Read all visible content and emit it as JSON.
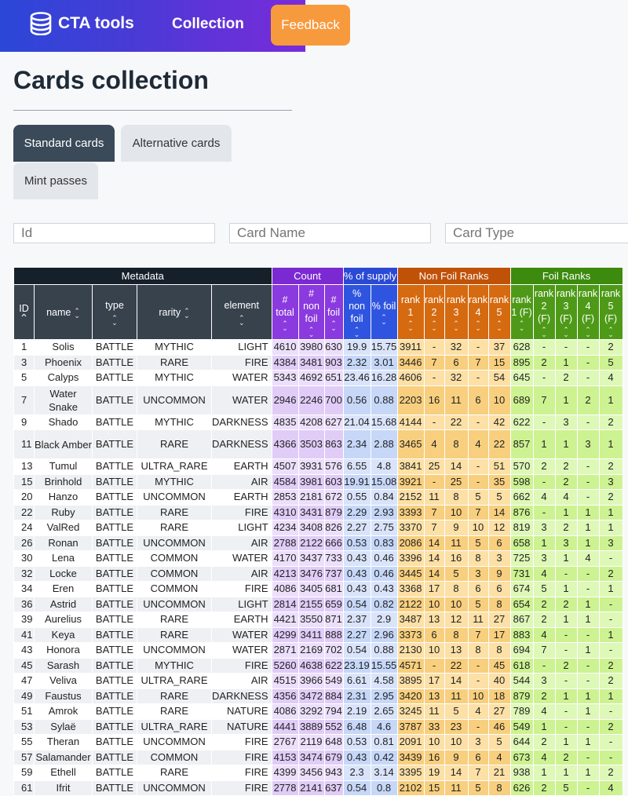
{
  "header": {
    "brand": "CTA tools",
    "nav_collection": "Collection",
    "feedback": "Feedback"
  },
  "page": {
    "title": "Cards collection",
    "tabs": [
      "Standard cards",
      "Alternative cards",
      "Mint passes"
    ]
  },
  "filters": {
    "id_placeholder": "Id",
    "name_placeholder": "Card Name",
    "type_placeholder": "Card Type"
  },
  "table": {
    "groups": [
      "Metadata",
      "Count",
      "% of supply",
      "Non Foil Ranks",
      "Foil Ranks"
    ],
    "columns": [
      [
        "ID"
      ],
      [
        "name"
      ],
      [
        "type"
      ],
      [
        "rarity"
      ],
      [
        "element"
      ],
      [
        "#",
        "total"
      ],
      [
        "#",
        "non",
        "foil"
      ],
      [
        "#",
        "foil"
      ],
      [
        "%",
        "non",
        "foil"
      ],
      [
        "% foil"
      ],
      [
        "rank",
        "1"
      ],
      [
        "rank",
        "2"
      ],
      [
        "rank",
        "3"
      ],
      [
        "rank",
        "4"
      ],
      [
        "rank",
        "5"
      ],
      [
        "rank",
        "1 (F)"
      ],
      [
        "rank",
        "2",
        "(F)"
      ],
      [
        "rank",
        "3",
        "(F)"
      ],
      [
        "rank",
        "4",
        "(F)"
      ],
      [
        "rank",
        "5",
        "(F)"
      ]
    ],
    "sort_icons": {
      "ID": "sort-asc-icon",
      "other": "sort-both-icon"
    },
    "rows": [
      [
        "1",
        "Solis",
        "BATTLE",
        "MYTHIC",
        "LIGHT",
        "4610",
        "3980",
        "630",
        "19.9",
        "15.75",
        "3911",
        "-",
        "32",
        "-",
        "37",
        "628",
        "-",
        "-",
        "-",
        "2"
      ],
      [
        "3",
        "Phoenix",
        "BATTLE",
        "RARE",
        "FIRE",
        "4384",
        "3481",
        "903",
        "2.32",
        "3.01",
        "3446",
        "7",
        "6",
        "7",
        "15",
        "895",
        "2",
        "1",
        "-",
        "5"
      ],
      [
        "5",
        "Calyps",
        "BATTLE",
        "MYTHIC",
        "WATER",
        "5343",
        "4692",
        "651",
        "23.46",
        "16.28",
        "4606",
        "-",
        "32",
        "-",
        "54",
        "645",
        "-",
        "2",
        "-",
        "4"
      ],
      [
        "7",
        "Water Snake",
        "BATTLE",
        "UNCOMMON",
        "WATER",
        "2946",
        "2246",
        "700",
        "0.56",
        "0.88",
        "2203",
        "16",
        "11",
        "6",
        "10",
        "689",
        "7",
        "1",
        "2",
        "1"
      ],
      [
        "9",
        "Shado",
        "BATTLE",
        "MYTHIC",
        "DARKNESS",
        "4835",
        "4208",
        "627",
        "21.04",
        "15.68",
        "4144",
        "-",
        "22",
        "-",
        "42",
        "622",
        "-",
        "3",
        "-",
        "2"
      ],
      [
        "11",
        "Black Amber",
        "BATTLE",
        "RARE",
        "DARKNESS",
        "4366",
        "3503",
        "863",
        "2.34",
        "2.88",
        "3465",
        "4",
        "8",
        "4",
        "22",
        "857",
        "1",
        "1",
        "3",
        "1"
      ],
      [
        "13",
        "Tumul",
        "BATTLE",
        "ULTRA_RARE",
        "EARTH",
        "4507",
        "3931",
        "576",
        "6.55",
        "4.8",
        "3841",
        "25",
        "14",
        "-",
        "51",
        "570",
        "2",
        "2",
        "-",
        "2"
      ],
      [
        "15",
        "Brinhold",
        "BATTLE",
        "MYTHIC",
        "AIR",
        "4584",
        "3981",
        "603",
        "19.91",
        "15.08",
        "3921",
        "-",
        "25",
        "-",
        "35",
        "598",
        "-",
        "2",
        "-",
        "3"
      ],
      [
        "20",
        "Hanzo",
        "BATTLE",
        "UNCOMMON",
        "EARTH",
        "2853",
        "2181",
        "672",
        "0.55",
        "0.84",
        "2152",
        "11",
        "8",
        "5",
        "5",
        "662",
        "4",
        "4",
        "-",
        "2"
      ],
      [
        "22",
        "Ruby",
        "BATTLE",
        "RARE",
        "FIRE",
        "4310",
        "3431",
        "879",
        "2.29",
        "2.93",
        "3393",
        "7",
        "10",
        "7",
        "14",
        "876",
        "-",
        "1",
        "1",
        "1"
      ],
      [
        "24",
        "ValRed",
        "BATTLE",
        "RARE",
        "LIGHT",
        "4234",
        "3408",
        "826",
        "2.27",
        "2.75",
        "3370",
        "7",
        "9",
        "10",
        "12",
        "819",
        "3",
        "2",
        "1",
        "1"
      ],
      [
        "26",
        "Ronan",
        "BATTLE",
        "UNCOMMON",
        "AIR",
        "2788",
        "2122",
        "666",
        "0.53",
        "0.83",
        "2086",
        "14",
        "11",
        "5",
        "6",
        "658",
        "1",
        "3",
        "1",
        "3"
      ],
      [
        "30",
        "Lena",
        "BATTLE",
        "COMMON",
        "WATER",
        "4170",
        "3437",
        "733",
        "0.43",
        "0.46",
        "3396",
        "14",
        "16",
        "8",
        "3",
        "725",
        "3",
        "1",
        "4",
        "-"
      ],
      [
        "32",
        "Locke",
        "BATTLE",
        "COMMON",
        "AIR",
        "4213",
        "3476",
        "737",
        "0.43",
        "0.46",
        "3445",
        "14",
        "5",
        "3",
        "9",
        "731",
        "4",
        "-",
        "-",
        "2"
      ],
      [
        "34",
        "Eren",
        "BATTLE",
        "COMMON",
        "FIRE",
        "4086",
        "3405",
        "681",
        "0.43",
        "0.43",
        "3368",
        "17",
        "8",
        "6",
        "6",
        "674",
        "5",
        "1",
        "-",
        "1"
      ],
      [
        "36",
        "Astrid",
        "BATTLE",
        "UNCOMMON",
        "LIGHT",
        "2814",
        "2155",
        "659",
        "0.54",
        "0.82",
        "2122",
        "10",
        "10",
        "5",
        "8",
        "654",
        "2",
        "2",
        "1",
        "-"
      ],
      [
        "39",
        "Aurelius",
        "BATTLE",
        "RARE",
        "EARTH",
        "4421",
        "3550",
        "871",
        "2.37",
        "2.9",
        "3487",
        "13",
        "12",
        "11",
        "27",
        "867",
        "2",
        "1",
        "1",
        "-"
      ],
      [
        "41",
        "Keya",
        "BATTLE",
        "RARE",
        "WATER",
        "4299",
        "3411",
        "888",
        "2.27",
        "2.96",
        "3373",
        "6",
        "8",
        "7",
        "17",
        "883",
        "4",
        "-",
        "-",
        "1"
      ],
      [
        "43",
        "Honora",
        "BATTLE",
        "UNCOMMON",
        "WATER",
        "2871",
        "2169",
        "702",
        "0.54",
        "0.88",
        "2130",
        "10",
        "13",
        "8",
        "8",
        "694",
        "7",
        "-",
        "1",
        "-"
      ],
      [
        "45",
        "Sarash",
        "BATTLE",
        "MYTHIC",
        "FIRE",
        "5260",
        "4638",
        "622",
        "23.19",
        "15.55",
        "4571",
        "-",
        "22",
        "-",
        "45",
        "618",
        "-",
        "2",
        "-",
        "2"
      ],
      [
        "47",
        "Veliva",
        "BATTLE",
        "ULTRA_RARE",
        "AIR",
        "4515",
        "3966",
        "549",
        "6.61",
        "4.58",
        "3895",
        "17",
        "14",
        "-",
        "40",
        "544",
        "3",
        "-",
        "-",
        "2"
      ],
      [
        "49",
        "Faustus",
        "BATTLE",
        "RARE",
        "DARKNESS",
        "4356",
        "3472",
        "884",
        "2.31",
        "2.95",
        "3420",
        "13",
        "11",
        "10",
        "18",
        "879",
        "2",
        "1",
        "1",
        "1"
      ],
      [
        "51",
        "Amrok",
        "BATTLE",
        "RARE",
        "NATURE",
        "4086",
        "3292",
        "794",
        "2.19",
        "2.65",
        "3245",
        "11",
        "5",
        "4",
        "27",
        "789",
        "4",
        "-",
        "1",
        "-"
      ],
      [
        "53",
        "Sylaë",
        "BATTLE",
        "ULTRA_RARE",
        "NATURE",
        "4441",
        "3889",
        "552",
        "6.48",
        "4.6",
        "3787",
        "33",
        "23",
        "-",
        "46",
        "549",
        "1",
        "-",
        "-",
        "2"
      ],
      [
        "55",
        "Theran",
        "BATTLE",
        "UNCOMMON",
        "FIRE",
        "2767",
        "2119",
        "648",
        "0.53",
        "0.81",
        "2091",
        "10",
        "10",
        "3",
        "5",
        "644",
        "2",
        "1",
        "1",
        "-"
      ],
      [
        "57",
        "Salamander",
        "BATTLE",
        "COMMON",
        "FIRE",
        "4153",
        "3474",
        "679",
        "0.43",
        "0.42",
        "3439",
        "16",
        "9",
        "6",
        "4",
        "673",
        "4",
        "2",
        "-",
        "-"
      ],
      [
        "59",
        "Ethell",
        "BATTLE",
        "RARE",
        "FIRE",
        "4399",
        "3456",
        "943",
        "2.3",
        "3.14",
        "3395",
        "19",
        "14",
        "7",
        "21",
        "938",
        "1",
        "1",
        "1",
        "2"
      ],
      [
        "61",
        "Ifrit",
        "BATTLE",
        "UNCOMMON",
        "FIRE",
        "2778",
        "2141",
        "637",
        "0.54",
        "0.8",
        "2102",
        "15",
        "11",
        "5",
        "8",
        "626",
        "2",
        "5",
        "-",
        "4"
      ]
    ]
  }
}
